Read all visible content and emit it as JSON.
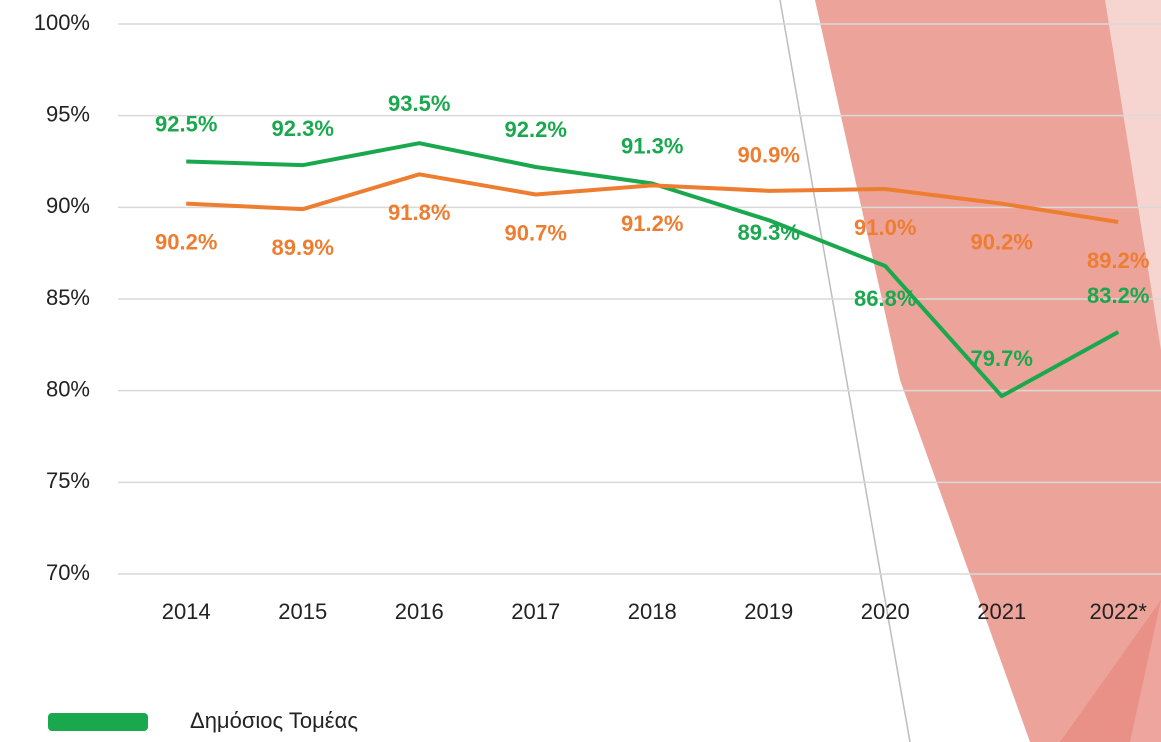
{
  "chart_data": {
    "type": "line",
    "categories": [
      "2014",
      "2015",
      "2016",
      "2017",
      "2018",
      "2019",
      "2020",
      "2021",
      "2022*"
    ],
    "series": [
      {
        "name": "Δημόσιος Τομέας",
        "color": "#1aa84f",
        "values": [
          92.5,
          92.3,
          93.5,
          92.2,
          91.3,
          89.3,
          86.8,
          79.7,
          83.2
        ],
        "value_labels": [
          "92.5%",
          "92.3%",
          "93.5%",
          "92.2%",
          "91.3%",
          "89.3%",
          "86.8%",
          "79.7%",
          "83.2%"
        ]
      },
      {
        "color": "#ed7d31",
        "values": [
          90.2,
          89.9,
          91.8,
          90.7,
          91.2,
          90.9,
          91.0,
          90.2,
          89.2
        ],
        "value_labels": [
          "90.2%",
          "89.9%",
          "91.8%",
          "90.7%",
          "91.2%",
          "90.9%",
          "91.0%",
          "90.2%",
          "89.2%"
        ]
      }
    ],
    "ylim": [
      70,
      100
    ],
    "yticks": [
      {
        "value": 70,
        "label": "70%"
      },
      {
        "value": 75,
        "label": "75%"
      },
      {
        "value": 80,
        "label": "80%"
      },
      {
        "value": 85,
        "label": "85%"
      },
      {
        "value": 90,
        "label": "90%"
      },
      {
        "value": 95,
        "label": "95%"
      },
      {
        "value": 100,
        "label": "100%"
      }
    ],
    "grid": true
  }
}
